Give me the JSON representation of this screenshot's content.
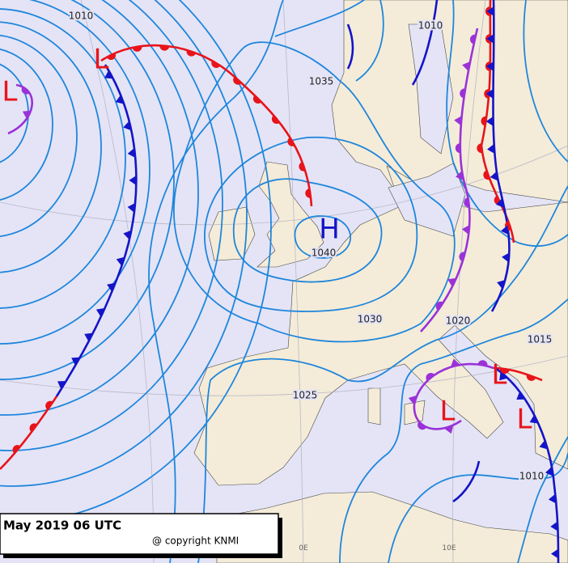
{
  "header": {
    "title": "May 2019 06 UTC",
    "copyright": "@ copyright KNMI"
  },
  "isobar_labels": [
    "1010",
    "1010",
    "1035",
    "1040",
    "1030",
    "1025",
    "1020",
    "1015",
    "1010"
  ],
  "pressure_centers": [
    "L",
    "L",
    "L",
    "L",
    "L",
    "H"
  ],
  "meridian_labels": [
    "0E",
    "10E"
  ]
}
